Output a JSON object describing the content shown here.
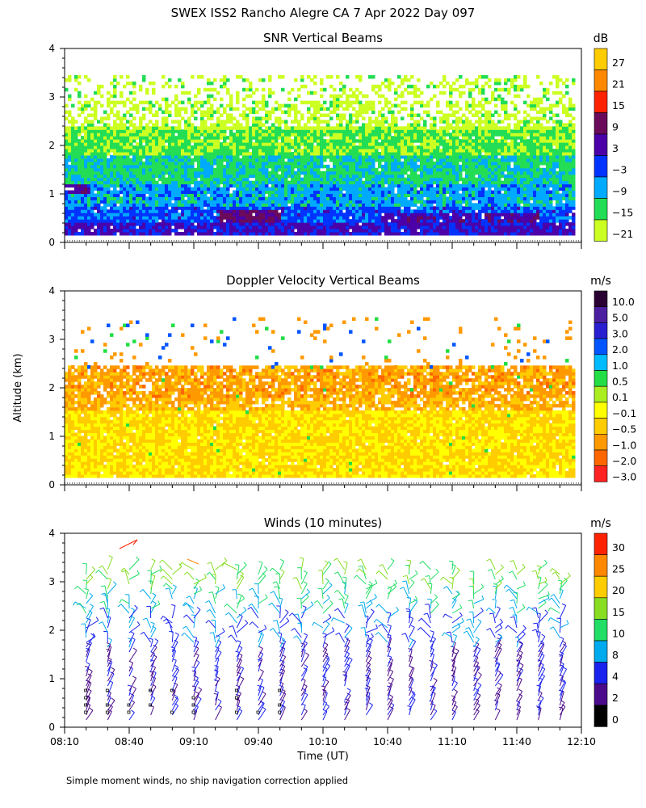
{
  "header": {
    "title": "SWEX ISS2 Rancho Alegre CA   7 Apr 2022 Day 097"
  },
  "footer": {
    "note": "Simple moment winds, no ship navigation correction applied"
  },
  "shared_axes": {
    "ylabel": "Altitude (km)",
    "xlabel": "Time (UT)",
    "y_ticks": [
      "0",
      "1",
      "2",
      "3",
      "4"
    ],
    "x_ticks": [
      "08:10",
      "08:40",
      "09:10",
      "09:40",
      "10:10",
      "10:40",
      "11:10",
      "11:40",
      "12:10"
    ]
  },
  "chart_data": [
    {
      "type": "heatmap",
      "title": "SNR Vertical Beams",
      "units": "dB",
      "xlim": [
        "08:10",
        "12:10"
      ],
      "ylim": [
        0,
        4
      ],
      "colorbar_labels": [
        "27",
        "21",
        "15",
        "9",
        "3",
        "−3",
        "−9",
        "−15",
        "−21"
      ],
      "colorbar_colors": [
        "#ffcc00",
        "#ff8800",
        "#ff2200",
        "#6a0a5a",
        "#4b00a8",
        "#0033ff",
        "#00aaff",
        "#22dd55",
        "#ccff22"
      ],
      "data_top_km": 3.4,
      "data_bottom_km": 0.15
    },
    {
      "type": "heatmap",
      "title": "Doppler Velocity Vertical Beams",
      "units": "m/s",
      "xlim": [
        "08:10",
        "12:10"
      ],
      "ylim": [
        0,
        4
      ],
      "colorbar_labels": [
        "10.0",
        "5.0",
        "3.0",
        "2.0",
        "1.0",
        "0.5",
        "0.1",
        "−0.1",
        "−0.5",
        "−1.0",
        "−2.0",
        "−3.0"
      ],
      "colorbar_colors": [
        "#2a0033",
        "#4b1fa0",
        "#2a1fd0",
        "#0055ff",
        "#00bbff",
        "#22dd44",
        "#aaee22",
        "#ffff00",
        "#ffcc00",
        "#ff9900",
        "#ff6600",
        "#ff2222"
      ],
      "data_top_km": 3.4,
      "data_bottom_km": 0.15
    },
    {
      "type": "scatter",
      "title": "Winds (10 minutes)",
      "units": "m/s",
      "xlim": [
        "08:10",
        "12:10"
      ],
      "ylim": [
        0,
        4
      ],
      "colorbar_labels": [
        "30",
        "25",
        "20",
        "15",
        "10",
        "8",
        "4",
        "2",
        "0"
      ],
      "colorbar_colors": [
        "#ff2200",
        "#ff8800",
        "#ffcc00",
        "#88dd22",
        "#22dd66",
        "#00aaee",
        "#1a22ee",
        "#4b0a8a",
        "#000000"
      ],
      "profile_times": [
        "08:20",
        "08:30",
        "08:40",
        "08:50",
        "09:00",
        "09:10",
        "09:20",
        "09:30",
        "09:40",
        "09:50",
        "10:00",
        "10:10",
        "10:20",
        "10:30",
        "10:40",
        "10:50",
        "11:00",
        "11:10",
        "11:20",
        "11:30",
        "11:40",
        "11:50",
        "12:00"
      ],
      "max_altitude_km": 3.3
    }
  ]
}
